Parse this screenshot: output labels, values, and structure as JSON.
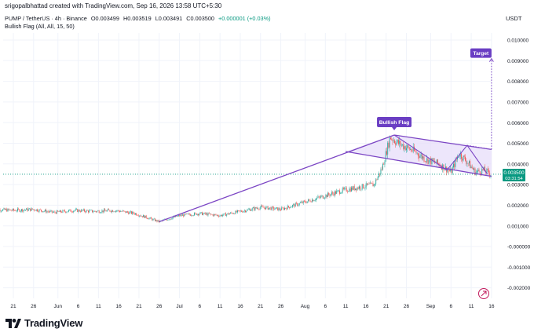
{
  "header": {
    "creator": "srigopalbhattad created with TradingView.com, Sep 16, 2026 13:58 UTC+5:30",
    "symbol": "PUMP / TetherUS · 4h · Binance",
    "open": "O0.003499",
    "high": "H0.003519",
    "low": "L0.003491",
    "close": "C0.003500",
    "change": "+0.000001 (+0.03%)",
    "indicator": "Bullish Flag (All, All, 15, 50)",
    "currency": "USDT"
  },
  "footer": {
    "brand": "TradingView",
    "logo_icon": "tradingview-logo-icon"
  },
  "chart_data": {
    "type": "candlestick",
    "title": "",
    "ylim": [
      -0.0025,
      0.0109
    ],
    "yticks": [
      "0.010000",
      "0.009000",
      "0.008000",
      "0.007000",
      "0.006000",
      "0.005000",
      "0.004000",
      "0.003000",
      "0.002000",
      "0.001000",
      "-0.000000",
      "-0.001000",
      "-0.002000"
    ],
    "ytick_values": [
      0.01,
      0.009,
      0.008,
      0.007,
      0.006,
      0.005,
      0.004,
      0.003,
      0.002,
      0.001,
      0,
      -0.001,
      -0.002
    ],
    "xticks": [
      "21",
      "26",
      "Jun",
      "6",
      "11",
      "16",
      "21",
      "26",
      "Jul",
      "6",
      "11",
      "16",
      "21",
      "26",
      "Aug",
      "6",
      "11",
      "16",
      "21",
      "26",
      "Sep",
      "6",
      "11",
      "16"
    ],
    "xtick_dates": [
      "2026-05-21",
      "2026-05-26",
      "2026-06-01",
      "2026-06-06",
      "2026-06-11",
      "2026-06-16",
      "2026-06-21",
      "2026-06-26",
      "2026-07-01",
      "2026-07-06",
      "2026-07-11",
      "2026-07-16",
      "2026-07-21",
      "2026-07-26",
      "2026-08-01",
      "2026-08-06",
      "2026-08-11",
      "2026-08-16",
      "2026-08-21",
      "2026-08-26",
      "2026-09-01",
      "2026-09-06",
      "2026-09-11",
      "2026-09-16"
    ],
    "price_series": {
      "dates": [
        "2026-05-16",
        "2026-05-21",
        "2026-05-26",
        "2026-05-31",
        "2026-06-05",
        "2026-06-10",
        "2026-06-15",
        "2026-06-20",
        "2026-06-26",
        "2026-07-01",
        "2026-07-06",
        "2026-07-11",
        "2026-07-16",
        "2026-07-21",
        "2026-07-26",
        "2026-07-31",
        "2026-08-05",
        "2026-08-10",
        "2026-08-15",
        "2026-08-18",
        "2026-08-20",
        "2026-08-22",
        "2026-08-24",
        "2026-08-26",
        "2026-08-28",
        "2026-08-31",
        "2026-09-03",
        "2026-09-06",
        "2026-09-08",
        "2026-09-10",
        "2026-09-12",
        "2026-09-14",
        "2026-09-16"
      ],
      "close": [
        0.0018,
        0.00175,
        0.0018,
        0.00165,
        0.00175,
        0.0017,
        0.00175,
        0.0016,
        0.0012,
        0.0015,
        0.0016,
        0.0015,
        0.0017,
        0.0019,
        0.0018,
        0.0021,
        0.0024,
        0.0027,
        0.0029,
        0.003,
        0.0038,
        0.0053,
        0.005,
        0.0048,
        0.0046,
        0.0042,
        0.004,
        0.0036,
        0.0045,
        0.0041,
        0.0036,
        0.0037,
        0.0035
      ]
    },
    "current_price": {
      "label": "0.003500",
      "timer": "03:31:54",
      "value": 0.0035
    },
    "pattern": {
      "label": "Bullish Flag",
      "target_label": "Target",
      "pole_start": {
        "date": "2026-06-26",
        "value": 0.0012
      },
      "flag_top_start": {
        "date": "2026-08-23",
        "value": 0.0054
      },
      "flag_top_end": {
        "date": "2026-09-16",
        "value": 0.0047
      },
      "flag_bottom_start": {
        "date": "2026-08-11",
        "value": 0.0046
      },
      "flag_bottom_end": {
        "date": "2026-09-16",
        "value": 0.0034
      },
      "zigzag": [
        {
          "date": "2026-08-23",
          "value": 0.0054
        },
        {
          "date": "2026-09-05",
          "value": 0.0037
        },
        {
          "date": "2026-09-10",
          "value": 0.0049
        },
        {
          "date": "2026-09-15",
          "value": 0.0035
        }
      ],
      "target": {
        "date": "2026-09-16",
        "value": 0.0091
      }
    },
    "colors": {
      "up": "#26a69a",
      "down": "#ef5350",
      "pattern": "#7b45c4",
      "pattern_fill": "#e7defa",
      "label_bg": "#6a3ec3",
      "price_label_bg": "#089981",
      "grid": "#f0f3fa"
    }
  }
}
